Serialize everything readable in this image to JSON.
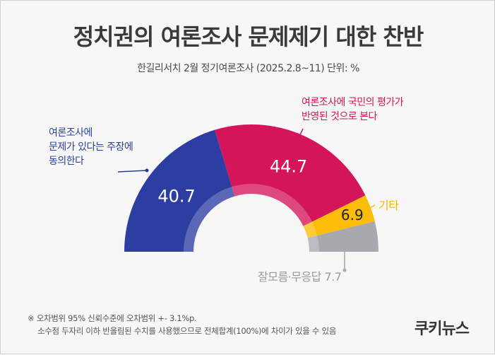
{
  "title": "정치권의 여론조사 문제제기 대한 찬반",
  "subtitle": "한길리서치 2월 정기여론조사 (2025.2.8~11) 단위: %",
  "chart_data": {
    "type": "pie",
    "shape": "semicircle-donut",
    "slices": [
      {
        "label": "여론조사에 문제가 있다는 주장에 동의한다",
        "value": 40.7,
        "value_label": "40.7",
        "color": "#2d3ea3",
        "label_color": "#2b3f9e"
      },
      {
        "label": "여론조사에 국민의 평가가 반영된 것으로 본다",
        "value": 44.7,
        "value_label": "44.7",
        "color": "#d4155a",
        "label_color": "#d21457"
      },
      {
        "label": "기타",
        "value": 6.9,
        "value_label": "6.9",
        "color": "#fbbd06",
        "label_color": "#f5b800"
      },
      {
        "label": "잘모름·무응답",
        "value": 7.7,
        "value_label": "",
        "color": "#a7a9ad",
        "label_color": "#9a9a9a"
      }
    ]
  },
  "annotations": {
    "blue_lines": [
      "여론조사에",
      "문제가 있다는 주장에",
      "동의한다"
    ],
    "red_lines": [
      "여론조사에 국민의 평가가",
      "반영된 것으로 본다"
    ],
    "yellow": "기타",
    "gray": "잘모름·무응답 7.7"
  },
  "footnote": {
    "line1": "※ 오차범위 95% 신뢰수준에 오차범위 +- 3.1%p.",
    "line2": "소수점 두자리 이하 반올림된 수치를 사용했으므로 전체합계(100%)에 차이가 있을 수 있음"
  },
  "logo": "쿠키뉴스"
}
